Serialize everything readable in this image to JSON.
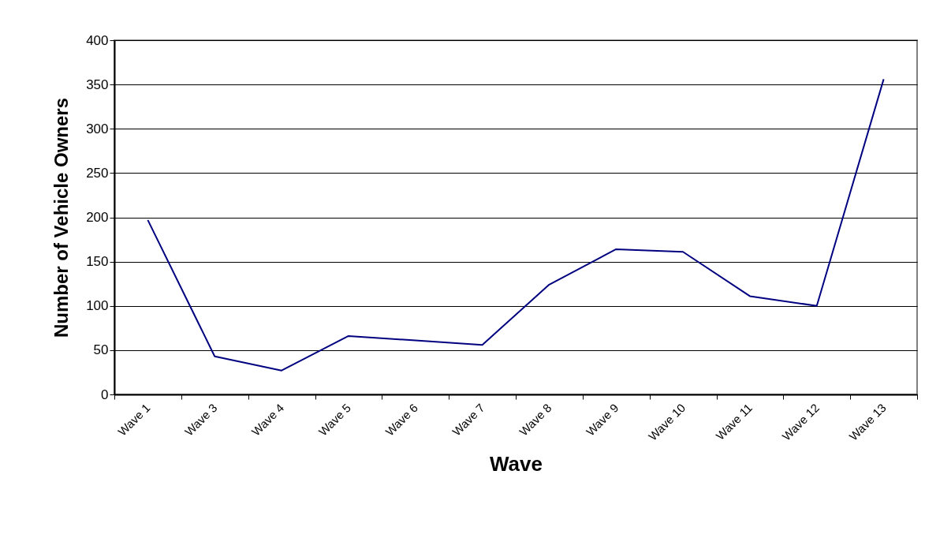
{
  "chart_data": {
    "type": "line",
    "xlabel": "Wave",
    "ylabel": "Number of Vehicle Owners",
    "categories": [
      "Wave 1",
      "Wave 3",
      "Wave 4",
      "Wave 5",
      "Wave 6",
      "Wave 7",
      "Wave 8",
      "Wave 9",
      "Wave 10",
      "Wave 11",
      "Wave 12",
      "Wave 13"
    ],
    "series": [
      {
        "color": "#000080",
        "values": [
          197,
          43,
          27,
          66,
          61,
          56,
          124,
          164,
          161,
          111,
          100,
          356
        ]
      }
    ],
    "ylim": [
      0,
      400
    ],
    "yticks": [
      0,
      50,
      100,
      150,
      200,
      250,
      300,
      350,
      400
    ],
    "grid": "y",
    "legend": false,
    "marker": "none",
    "line_style": "solid"
  }
}
